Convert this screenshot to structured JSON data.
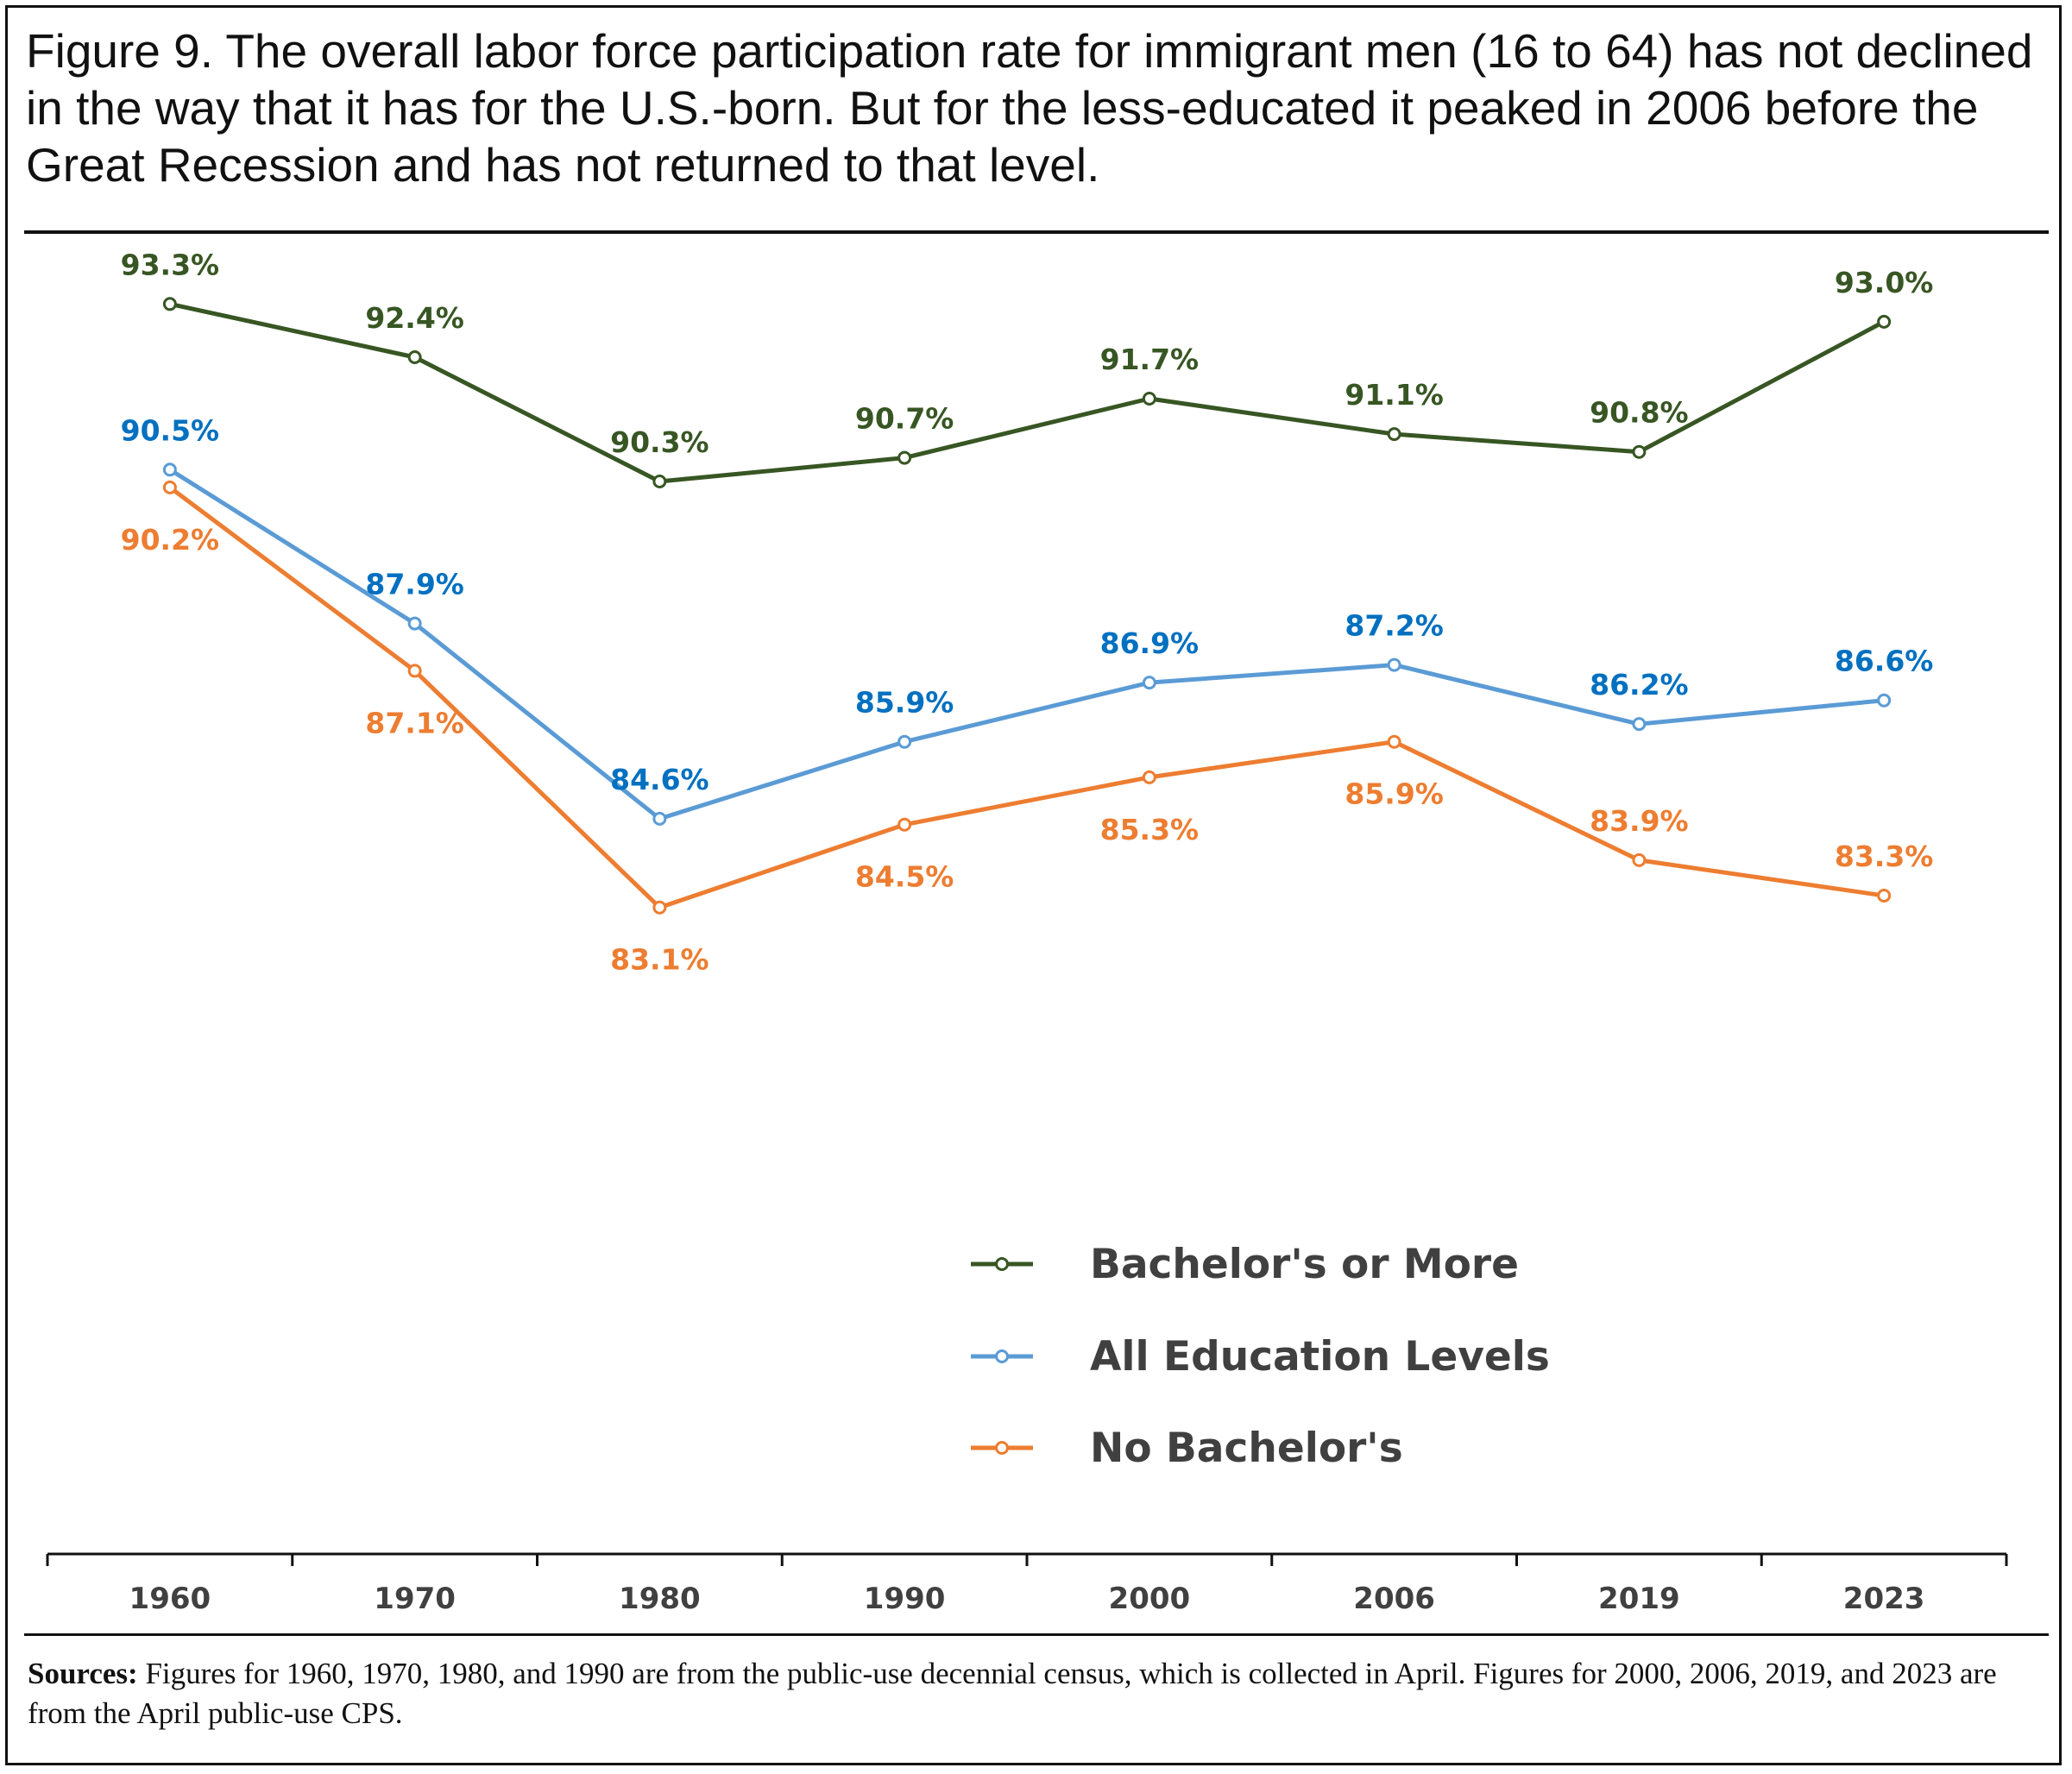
{
  "title": "Figure 9. The overall labor force participation rate for immigrant men (16 to 64) has not declined in the way that it has for the U.S.-born.  But for the less-educated it peaked in 2006 before the Great Recession and has not returned to that level.",
  "sources": {
    "label": "Sources:",
    "text": " Figures for 1960, 1970, 1980, and 1990 are from the public-use decennial census, which is collected in April. Figures for 2000, 2006, 2019, and 2023 are from the April public-use CPS."
  },
  "chart_data": {
    "type": "line",
    "categories": [
      "1960",
      "1970",
      "1980",
      "1990",
      "2000",
      "2006",
      "2019",
      "2023"
    ],
    "y_unit": "%",
    "ylim": [
      80.5,
      94.5
    ],
    "grid": false,
    "legend_position": "center-bottom",
    "series": [
      {
        "name": "Bachelor's or More",
        "color": "#375623",
        "label_color": "#375623",
        "values": [
          93.3,
          92.4,
          90.3,
          90.7,
          91.7,
          91.1,
          90.8,
          93.0
        ],
        "labels": [
          "93.3%",
          "92.4%",
          "90.3%",
          "90.7%",
          "91.7%",
          "91.1%",
          "90.8%",
          "93.0%"
        ]
      },
      {
        "name": "All Education Levels",
        "color": "#5B9BD5",
        "label_color": "#0070C0",
        "values": [
          90.5,
          87.9,
          84.6,
          85.9,
          86.9,
          87.2,
          86.2,
          86.6
        ],
        "labels": [
          "90.5%",
          "87.9%",
          "84.6%",
          "85.9%",
          "86.9%",
          "87.2%",
          "86.2%",
          "86.6%"
        ]
      },
      {
        "name": "No Bachelor's",
        "color": "#ED7D31",
        "label_color": "#ED7D31",
        "values": [
          90.2,
          87.1,
          83.1,
          84.5,
          85.3,
          85.9,
          83.9,
          83.3
        ],
        "labels": [
          "90.2%",
          "87.1%",
          "83.1%",
          "84.5%",
          "85.3%",
          "85.9%",
          "83.9%",
          "83.3%"
        ]
      }
    ]
  }
}
